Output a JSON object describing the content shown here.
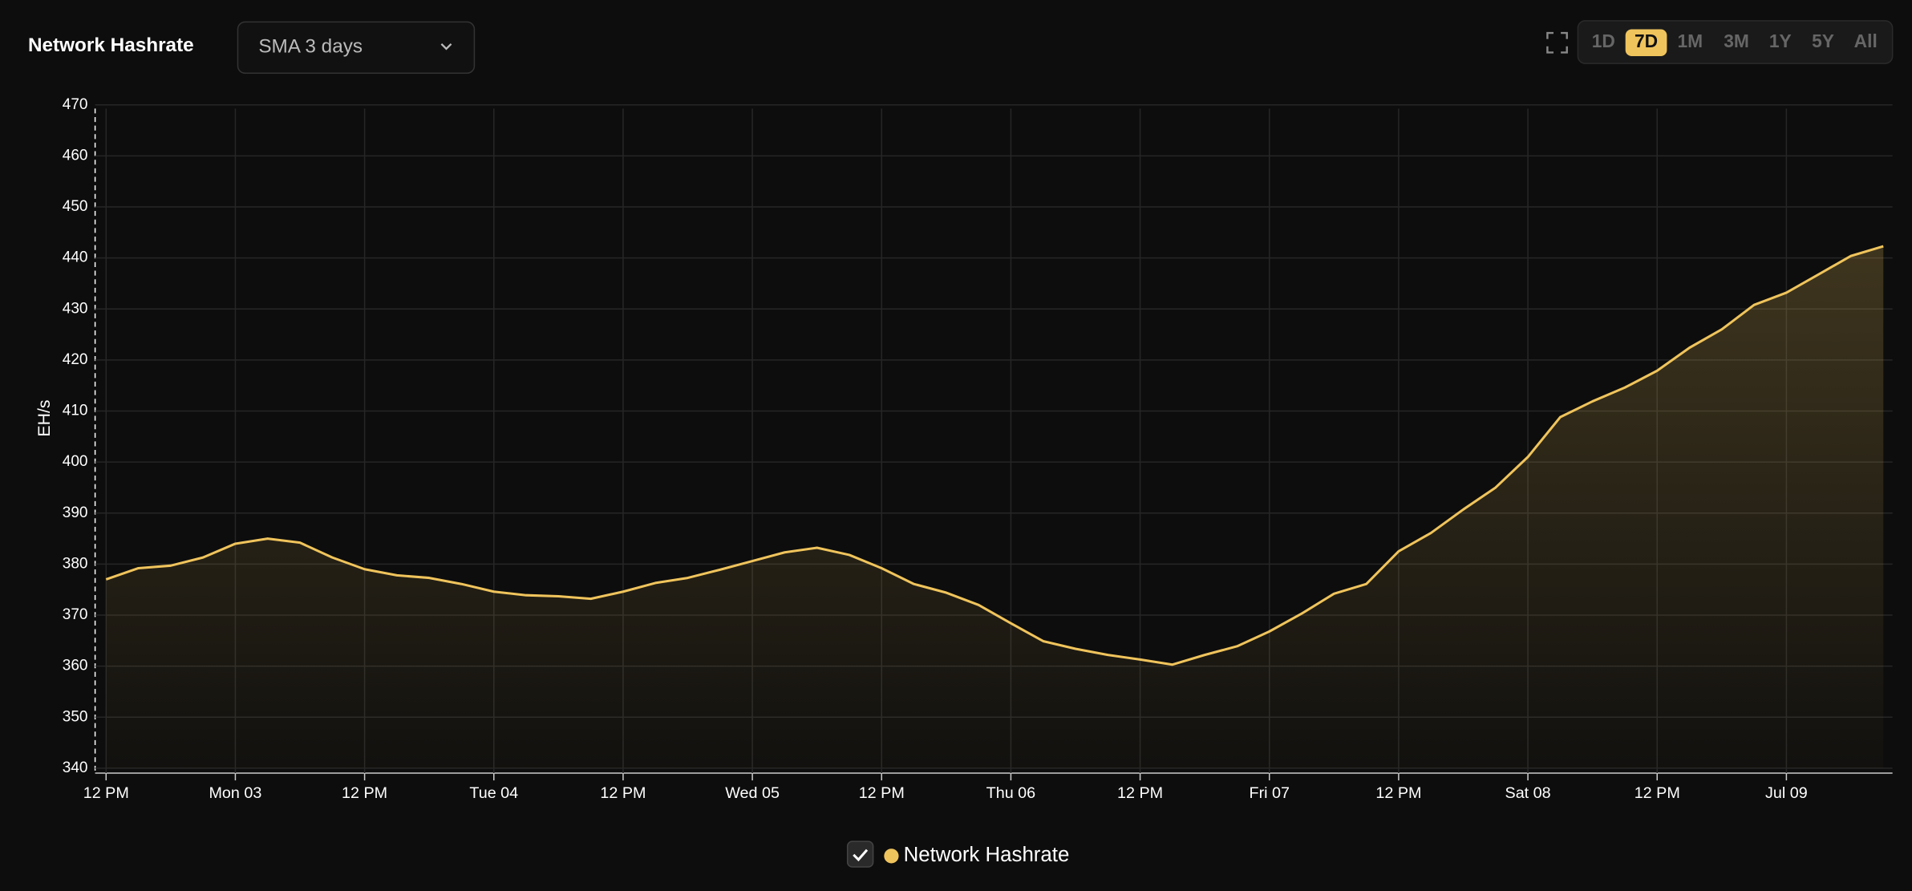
{
  "header": {
    "title": "Network Hashrate",
    "dropdown": "SMA 3 days",
    "ranges": [
      "1D",
      "7D",
      "1M",
      "3M",
      "1Y",
      "5Y",
      "All"
    ],
    "active_range": "7D"
  },
  "chart_data": {
    "type": "line",
    "y_label": "EH/s",
    "categories": [
      "12 PM",
      null,
      null,
      null,
      "Mon 03",
      null,
      null,
      null,
      "12 PM",
      null,
      null,
      null,
      "Tue 04",
      null,
      null,
      null,
      "12 PM",
      null,
      null,
      null,
      "Wed 05",
      null,
      null,
      null,
      "12 PM",
      null,
      null,
      null,
      "Thu 06",
      null,
      null,
      null,
      "12 PM",
      null,
      null,
      null,
      "Fri 07",
      null,
      null,
      null,
      "12 PM",
      null,
      null,
      null,
      "Sat 08",
      null,
      null,
      null,
      "12 PM",
      null,
      null,
      null,
      "Jul 09",
      null,
      null,
      null
    ],
    "series": [
      {
        "name": "Network Hashrate",
        "color": "#f0c45c",
        "values": [
          377,
          379.2,
          379.7,
          381.3,
          384,
          385,
          384.2,
          381.3,
          379,
          377.8,
          377.3,
          376.1,
          374.6,
          373.9,
          373.7,
          373.2,
          374.6,
          376.3,
          377.3,
          378.9,
          380.6,
          382.3,
          383.2,
          381.8,
          379.2,
          376.1,
          374.4,
          372,
          368.4,
          364.9,
          363.4,
          362.2,
          361.3,
          360.3,
          362.2,
          363.9,
          366.8,
          370.3,
          374.2,
          376.1,
          382.5,
          386.1,
          390.7,
          395,
          401,
          408.8,
          411.9,
          414.6,
          417.9,
          422.4,
          426,
          430.8,
          433.2,
          436.8,
          440.4,
          442.3
        ]
      }
    ],
    "ylim": [
      340,
      470
    ],
    "yticks": [
      340,
      350,
      360,
      370,
      380,
      390,
      400,
      410,
      420,
      430,
      440,
      450,
      460,
      470
    ],
    "grid": true
  }
}
